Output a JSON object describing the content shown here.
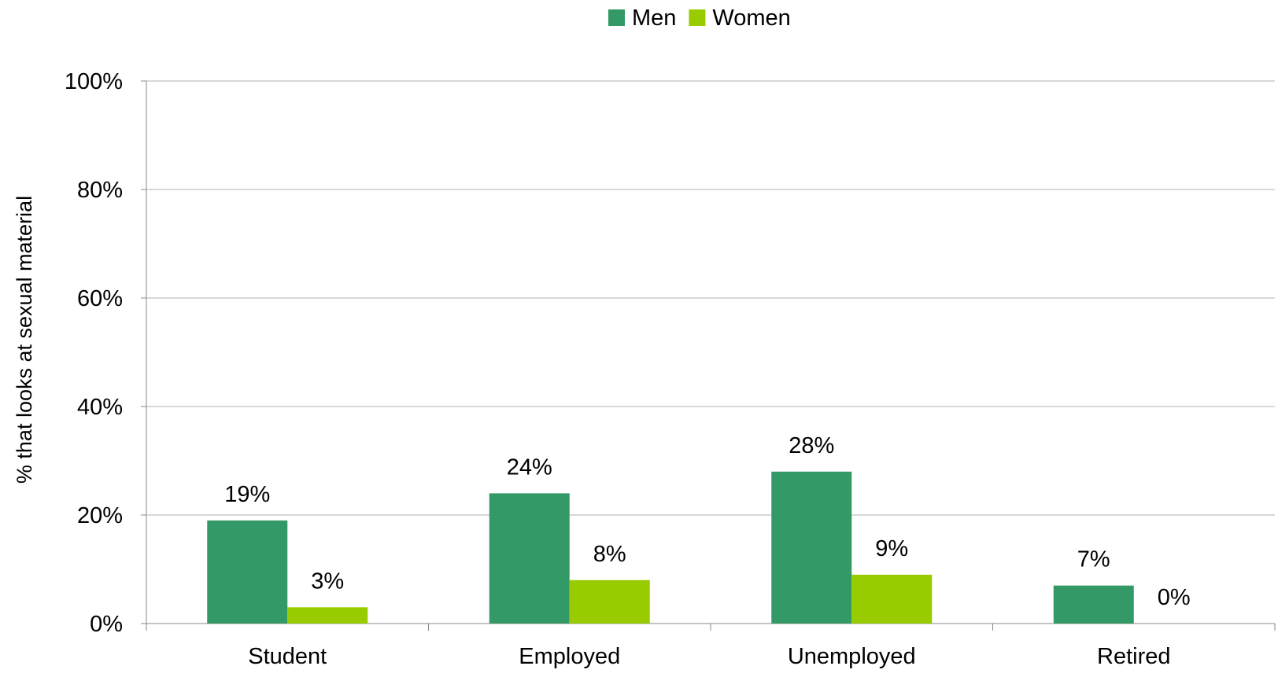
{
  "chart_data": {
    "type": "bar",
    "categories": [
      "Student",
      "Employed",
      "Unemployed",
      "Retired"
    ],
    "series": [
      {
        "name": "Men",
        "values": [
          19,
          24,
          28,
          7
        ],
        "color": "#339966",
        "labels": [
          "19%",
          "24%",
          "28%",
          "7%"
        ]
      },
      {
        "name": "Women",
        "values": [
          3,
          8,
          9,
          0
        ],
        "color": "#99CC00",
        "labels": [
          "3%",
          "8%",
          "9%",
          "0%"
        ]
      }
    ],
    "title": "",
    "xlabel": "",
    "ylabel": "% that looks at sexual material",
    "ylim": [
      0,
      100
    ],
    "yticks": [
      0,
      20,
      40,
      60,
      80,
      100
    ],
    "ytick_labels": [
      "0%",
      "20%",
      "40%",
      "60%",
      "80%",
      "100%"
    ],
    "grid": true,
    "legend": "top-center",
    "colors": {
      "gridline": "#B0B0B0",
      "axis": "#888888"
    }
  }
}
